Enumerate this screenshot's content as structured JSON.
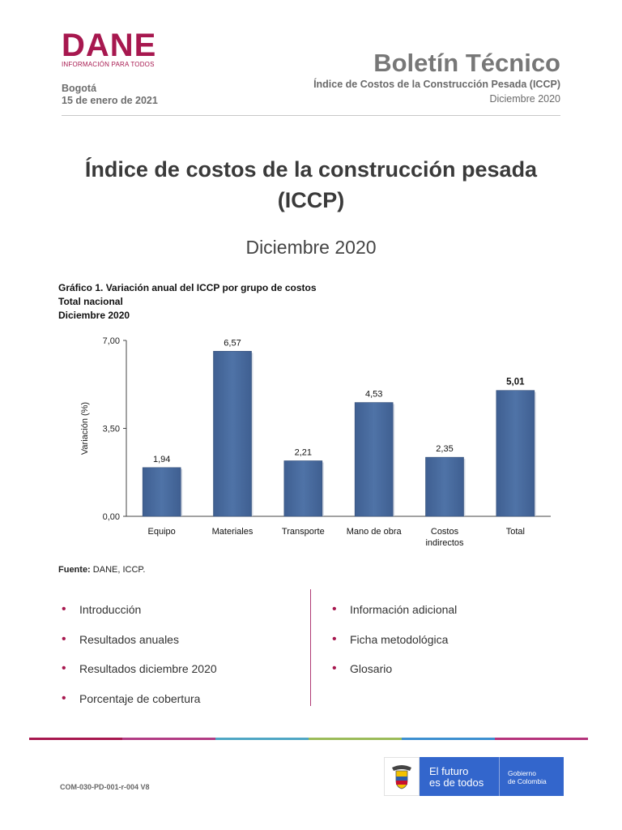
{
  "header": {
    "logo_word": "DANE",
    "logo_tagline": "INFORMACIÓN PARA TODOS",
    "city": "Bogotá",
    "date": "15 de enero de 2021",
    "bulletin_title": "Boletín Técnico",
    "bulletin_subtitle": "Índice de Costos de la Construcción Pesada (ICCP)",
    "bulletin_period": "Diciembre 2020"
  },
  "document": {
    "title_line1": "Índice de costos de la construcción pesada",
    "title_line2": "(ICCP)",
    "period": "Diciembre 2020"
  },
  "chart_caption": {
    "line1": "Gráfico 1. Variación anual del ICCP por grupo de costos",
    "line2": "Total nacional",
    "line3": "Diciembre 2020"
  },
  "chart_data": {
    "type": "bar",
    "categories": [
      "Equipo",
      "Materiales",
      "Transporte",
      "Mano de obra",
      "Costos indirectos",
      "Total"
    ],
    "values": [
      1.94,
      6.57,
      2.21,
      4.53,
      2.35,
      5.01
    ],
    "value_labels": [
      "1,94",
      "6,57",
      "2,21",
      "4,53",
      "2,35",
      "5,01"
    ],
    "ylabel": "Variación (%)",
    "xlabel": "",
    "ylim": [
      0,
      7
    ],
    "yticks": [
      0,
      3.5,
      7
    ],
    "ytick_labels": [
      "0,00",
      "3,50",
      "7,00"
    ],
    "grid": false,
    "bar_color": "#4f73a7",
    "emphasized_label": "Total"
  },
  "source": {
    "label": "Fuente:",
    "text": " DANE, ICCP."
  },
  "toc": {
    "left": [
      "Introducción",
      "Resultados anuales",
      "Resultados diciembre 2020",
      "Porcentaje de cobertura"
    ],
    "right": [
      "Información adicional",
      "Ficha metodológica",
      "Glosario"
    ]
  },
  "footer": {
    "doc_code": "COM-030-PD-001-r-004 V8",
    "gov_line1": "El futuro",
    "gov_line2": "es de todos",
    "gov_name1": "Gobierno",
    "gov_name2": "de Colombia",
    "stripe_colors": [
      "#a7184f",
      "#b23c84",
      "#4fa6c4",
      "#9bbb59",
      "#3d8fd0",
      "#b5347c"
    ],
    "shield_icon": "colombia-coat-of-arms-icon"
  },
  "colors": {
    "brand": "#a7184f",
    "gov_blue": "#3366cc"
  }
}
